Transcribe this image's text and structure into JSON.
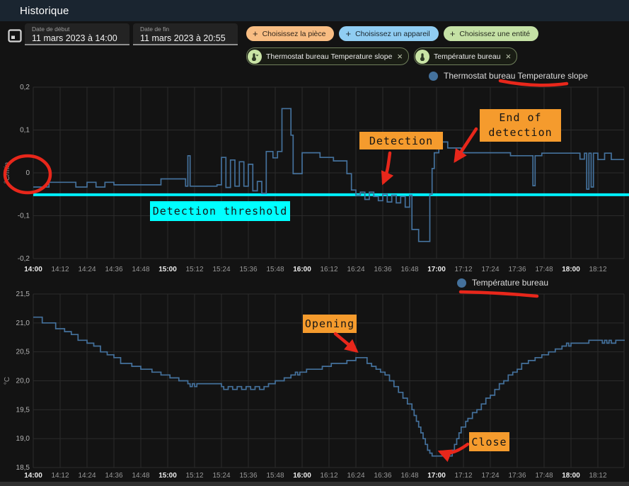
{
  "app": {
    "title": "Historique"
  },
  "toolbar": {
    "date_start": {
      "label": "Date de début",
      "value": "11 mars 2023 à 14:00"
    },
    "date_end": {
      "label": "Date de fin",
      "value": "11 mars 2023 à 20:55"
    },
    "pickers": [
      {
        "label": "Choisissez la pièce",
        "color": "#f8bd83"
      },
      {
        "label": "Choisissez un appareil",
        "color": "#90cdf2"
      },
      {
        "label": "Choisissez une entité",
        "color": "#c5e1a5"
      }
    ],
    "plus_glyph": "+",
    "close_glyph": "×",
    "chips": [
      {
        "label": "Thermostat bureau Temperature slope"
      },
      {
        "label": "Température bureau"
      }
    ],
    "colors": {
      "chip_icon_bg": "#c9e4a5"
    }
  },
  "annotations": {
    "detection": "Detection",
    "end_of_detection": [
      "End of",
      "detection"
    ],
    "detection_threshold": "Detection threshold",
    "opening": "Opening",
    "close": "Close",
    "colors": {
      "box": "#f59b2d",
      "threshold_box": "#00ffff",
      "marker": "#e8271b"
    }
  },
  "chart_data": [
    {
      "type": "line",
      "step": true,
      "title": "",
      "xlabel": "",
      "ylabel": "°C/min",
      "ylim": [
        -0.2,
        0.2
      ],
      "grid": true,
      "legend_position": "top-right",
      "y_ticks": [
        {
          "v": 0.2,
          "label": "0,2"
        },
        {
          "v": 0.1,
          "label": "0,1"
        },
        {
          "v": 0,
          "label": "0"
        },
        {
          "v": -0.1,
          "label": "-0,1"
        },
        {
          "v": -0.2,
          "label": "-0,2"
        }
      ],
      "x_ticks": [
        {
          "t": 0,
          "label": "14:00",
          "bold": true
        },
        {
          "t": 12,
          "label": "14:12",
          "bold": false
        },
        {
          "t": 24,
          "label": "14:24",
          "bold": false
        },
        {
          "t": 36,
          "label": "14:36",
          "bold": false
        },
        {
          "t": 48,
          "label": "14:48",
          "bold": false
        },
        {
          "t": 60,
          "label": "15:00",
          "bold": true
        },
        {
          "t": 72,
          "label": "15:12",
          "bold": false
        },
        {
          "t": 84,
          "label": "15:24",
          "bold": false
        },
        {
          "t": 96,
          "label": "15:36",
          "bold": false
        },
        {
          "t": 108,
          "label": "15:48",
          "bold": false
        },
        {
          "t": 120,
          "label": "16:00",
          "bold": true
        },
        {
          "t": 132,
          "label": "16:12",
          "bold": false
        },
        {
          "t": 144,
          "label": "16:24",
          "bold": false
        },
        {
          "t": 156,
          "label": "16:36",
          "bold": false
        },
        {
          "t": 168,
          "label": "16:48",
          "bold": false
        },
        {
          "t": 180,
          "label": "17:00",
          "bold": true
        },
        {
          "t": 192,
          "label": "17:12",
          "bold": false
        },
        {
          "t": 204,
          "label": "17:24",
          "bold": false
        },
        {
          "t": 216,
          "label": "17:36",
          "bold": false
        },
        {
          "t": 228,
          "label": "17:48",
          "bold": false
        },
        {
          "t": 240,
          "label": "18:00",
          "bold": true
        },
        {
          "t": 252,
          "label": "18:12",
          "bold": false
        }
      ],
      "threshold": {
        "value": -0.051,
        "color": "#00f0ff",
        "label": "Detection threshold"
      },
      "series": [
        {
          "name": "Thermostat bureau Temperature slope",
          "color": "#44719c",
          "points": [
            [
              0,
              -0.033
            ],
            [
              7,
              -0.022
            ],
            [
              19,
              -0.033
            ],
            [
              24,
              -0.022
            ],
            [
              28,
              -0.033
            ],
            [
              32,
              -0.022
            ],
            [
              36,
              -0.028
            ],
            [
              57,
              -0.014
            ],
            [
              68,
              -0.031
            ],
            [
              69,
              0.04
            ],
            [
              70,
              -0.031
            ],
            [
              82,
              -0.028
            ],
            [
              84,
              0.036
            ],
            [
              86,
              -0.034
            ],
            [
              88,
              0.03
            ],
            [
              90,
              -0.031
            ],
            [
              92,
              0.026
            ],
            [
              94,
              -0.031
            ],
            [
              96,
              0.02
            ],
            [
              98,
              -0.042
            ],
            [
              100,
              -0.02
            ],
            [
              102,
              -0.048
            ],
            [
              104,
              0.05
            ],
            [
              107,
              0.035
            ],
            [
              109,
              0.05
            ],
            [
              111,
              0.15
            ],
            [
              115,
              0.088
            ],
            [
              116,
              -0.002
            ],
            [
              120,
              0.047
            ],
            [
              128,
              0.036
            ],
            [
              134,
              0.028
            ],
            [
              140,
              -0.002
            ],
            [
              142,
              -0.04
            ],
            [
              144,
              -0.052
            ],
            [
              146,
              -0.045
            ],
            [
              148,
              -0.062
            ],
            [
              150,
              -0.045
            ],
            [
              152,
              -0.055
            ],
            [
              154,
              -0.065
            ],
            [
              156,
              -0.05
            ],
            [
              158,
              -0.068
            ],
            [
              160,
              -0.052
            ],
            [
              162,
              -0.07
            ],
            [
              164,
              -0.055
            ],
            [
              166,
              -0.08
            ],
            [
              168,
              -0.052
            ],
            [
              169,
              -0.132
            ],
            [
              172,
              -0.16
            ],
            [
              177,
              -0.05
            ],
            [
              178,
              0.01
            ],
            [
              179,
              0.047
            ],
            [
              181,
              0.062
            ],
            [
              182,
              0.072
            ],
            [
              185,
              0.058
            ],
            [
              191,
              0.047
            ],
            [
              213,
              0.04
            ],
            [
              222,
              0.04
            ],
            [
              223,
              -0.03
            ],
            [
              224,
              0.04
            ],
            [
              227,
              0.046
            ],
            [
              242,
              0.046
            ],
            [
              244,
              0.032
            ],
            [
              246,
              0.046
            ],
            [
              247,
              -0.038
            ],
            [
              248,
              0.046
            ],
            [
              249,
              -0.033
            ],
            [
              250,
              0.046
            ],
            [
              252,
              0.031
            ],
            [
              255,
              0.046
            ],
            [
              258,
              0.031
            ],
            [
              262,
              0.031
            ]
          ]
        }
      ]
    },
    {
      "type": "line",
      "step": true,
      "title": "",
      "xlabel": "",
      "ylabel": "°C",
      "ylim": [
        18.5,
        21.5
      ],
      "grid": true,
      "legend_position": "top-right",
      "y_ticks": [
        {
          "v": 21.5,
          "label": "21,5"
        },
        {
          "v": 21.0,
          "label": "21,0"
        },
        {
          "v": 20.5,
          "label": "20,5"
        },
        {
          "v": 20.0,
          "label": "20,0"
        },
        {
          "v": 19.5,
          "label": "19,5"
        },
        {
          "v": 19.0,
          "label": "19,0"
        },
        {
          "v": 18.5,
          "label": "18,5"
        }
      ],
      "x_ticks": [
        {
          "t": 0,
          "label": "14:00",
          "bold": true
        },
        {
          "t": 12,
          "label": "14:12",
          "bold": false
        },
        {
          "t": 24,
          "label": "14:24",
          "bold": false
        },
        {
          "t": 36,
          "label": "14:36",
          "bold": false
        },
        {
          "t": 48,
          "label": "14:48",
          "bold": false
        },
        {
          "t": 60,
          "label": "15:00",
          "bold": true
        },
        {
          "t": 72,
          "label": "15:12",
          "bold": false
        },
        {
          "t": 84,
          "label": "15:24",
          "bold": false
        },
        {
          "t": 96,
          "label": "15:36",
          "bold": false
        },
        {
          "t": 108,
          "label": "15:48",
          "bold": false
        },
        {
          "t": 120,
          "label": "16:00",
          "bold": true
        },
        {
          "t": 132,
          "label": "16:12",
          "bold": false
        },
        {
          "t": 144,
          "label": "16:24",
          "bold": false
        },
        {
          "t": 156,
          "label": "16:36",
          "bold": false
        },
        {
          "t": 168,
          "label": "16:48",
          "bold": false
        },
        {
          "t": 180,
          "label": "17:00",
          "bold": true
        },
        {
          "t": 192,
          "label": "17:12",
          "bold": false
        },
        {
          "t": 204,
          "label": "17:24",
          "bold": false
        },
        {
          "t": 216,
          "label": "17:36",
          "bold": false
        },
        {
          "t": 228,
          "label": "17:48",
          "bold": false
        },
        {
          "t": 240,
          "label": "18:00",
          "bold": true
        },
        {
          "t": 252,
          "label": "18:12",
          "bold": false
        }
      ],
      "series": [
        {
          "name": "Température bureau",
          "color": "#44719c",
          "points": [
            [
              0,
              21.1
            ],
            [
              4,
              21.0
            ],
            [
              10,
              20.9
            ],
            [
              14,
              20.85
            ],
            [
              17,
              20.8
            ],
            [
              20,
              20.7
            ],
            [
              24,
              20.65
            ],
            [
              27,
              20.6
            ],
            [
              30,
              20.5
            ],
            [
              33,
              20.45
            ],
            [
              36,
              20.4
            ],
            [
              39,
              20.3
            ],
            [
              44,
              20.25
            ],
            [
              48,
              20.2
            ],
            [
              53,
              20.15
            ],
            [
              57,
              20.1
            ],
            [
              61,
              20.05
            ],
            [
              65,
              20.0
            ],
            [
              69,
              19.95
            ],
            [
              70,
              19.9
            ],
            [
              71,
              19.95
            ],
            [
              72,
              19.9
            ],
            [
              73,
              19.95
            ],
            [
              84,
              19.9
            ],
            [
              85,
              19.85
            ],
            [
              87,
              19.9
            ],
            [
              89,
              19.85
            ],
            [
              91,
              19.9
            ],
            [
              93,
              19.85
            ],
            [
              95,
              19.9
            ],
            [
              97,
              19.85
            ],
            [
              99,
              19.9
            ],
            [
              101,
              19.85
            ],
            [
              103,
              19.9
            ],
            [
              105,
              19.95
            ],
            [
              108,
              20.0
            ],
            [
              112,
              20.05
            ],
            [
              115,
              20.1
            ],
            [
              117,
              20.15
            ],
            [
              118,
              20.1
            ],
            [
              119,
              20.15
            ],
            [
              122,
              20.2
            ],
            [
              129,
              20.25
            ],
            [
              133,
              20.3
            ],
            [
              140,
              20.35
            ],
            [
              144,
              20.4
            ],
            [
              149,
              20.3
            ],
            [
              151,
              20.25
            ],
            [
              153,
              20.2
            ],
            [
              155,
              20.15
            ],
            [
              157,
              20.1
            ],
            [
              159,
              20.0
            ],
            [
              161,
              19.9
            ],
            [
              163,
              19.8
            ],
            [
              165,
              19.7
            ],
            [
              167,
              19.6
            ],
            [
              169,
              19.5
            ],
            [
              170,
              19.4
            ],
            [
              171,
              19.3
            ],
            [
              172,
              19.2
            ],
            [
              173,
              19.1
            ],
            [
              174,
              19.0
            ],
            [
              175,
              18.9
            ],
            [
              176,
              18.8
            ],
            [
              177,
              18.75
            ],
            [
              178,
              18.7
            ],
            [
              186,
              18.7
            ],
            [
              187,
              18.8
            ],
            [
              188,
              18.9
            ],
            [
              189,
              19.0
            ],
            [
              190,
              19.1
            ],
            [
              191,
              19.2
            ],
            [
              193,
              19.3
            ],
            [
              194,
              19.35
            ],
            [
              196,
              19.45
            ],
            [
              198,
              19.5
            ],
            [
              200,
              19.6
            ],
            [
              202,
              19.7
            ],
            [
              204,
              19.75
            ],
            [
              206,
              19.85
            ],
            [
              208,
              19.95
            ],
            [
              210,
              20.0
            ],
            [
              212,
              20.1
            ],
            [
              214,
              20.15
            ],
            [
              216,
              20.2
            ],
            [
              218,
              20.3
            ],
            [
              221,
              20.35
            ],
            [
              224,
              20.4
            ],
            [
              227,
              20.45
            ],
            [
              230,
              20.5
            ],
            [
              233,
              20.55
            ],
            [
              236,
              20.6
            ],
            [
              238,
              20.65
            ],
            [
              239,
              20.6
            ],
            [
              240,
              20.65
            ],
            [
              248,
              20.7
            ],
            [
              254,
              20.65
            ],
            [
              255,
              20.7
            ],
            [
              256,
              20.65
            ],
            [
              257,
              20.7
            ],
            [
              258,
              20.65
            ],
            [
              260,
              20.7
            ],
            [
              264,
              20.7
            ]
          ]
        }
      ]
    }
  ]
}
